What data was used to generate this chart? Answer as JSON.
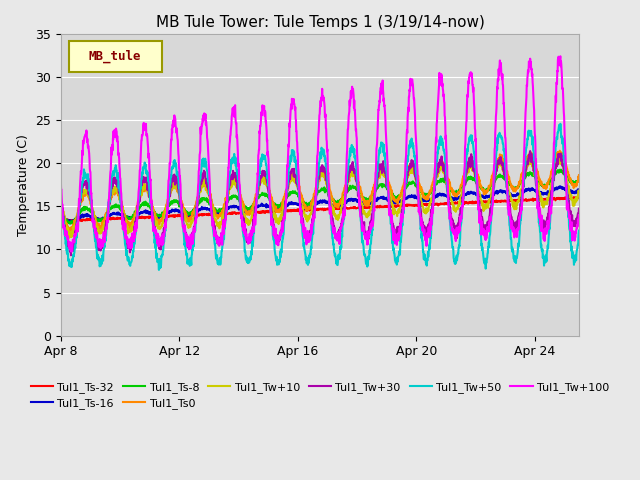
{
  "title": "MB Tule Tower: Tule Temps 1 (3/19/14-now)",
  "ylabel": "Temperature (C)",
  "xlabel": "",
  "ylim": [
    0,
    35
  ],
  "yticks": [
    0,
    5,
    10,
    15,
    20,
    25,
    30,
    35
  ],
  "background_color": "#e8e8e8",
  "axes_bg_color": "#d4d4d4",
  "plot_bg_color": "#d8d8d8",
  "legend_box_color": "#ffffcc",
  "legend_box_edge": "#999900",
  "legend_label_color": "#880000",
  "series": [
    {
      "name": "Tul1_Ts-32",
      "color": "#ff0000",
      "lw": 1.5
    },
    {
      "name": "Tul1_Ts-16",
      "color": "#0000cc",
      "lw": 1.5
    },
    {
      "name": "Tul1_Ts-8",
      "color": "#00cc00",
      "lw": 1.5
    },
    {
      "name": "Tul1_Ts0",
      "color": "#ff8800",
      "lw": 1.5
    },
    {
      "name": "Tul1_Tw+10",
      "color": "#cccc00",
      "lw": 1.5
    },
    {
      "name": "Tul1_Tw+30",
      "color": "#aa00aa",
      "lw": 1.5
    },
    {
      "name": "Tul1_Tw+50",
      "color": "#00cccc",
      "lw": 1.5
    },
    {
      "name": "Tul1_Tw+100",
      "color": "#ff00ff",
      "lw": 1.5
    }
  ],
  "xtick_positions": [
    0,
    4,
    8,
    12,
    16
  ],
  "xtick_labels": [
    "Apr 8",
    "Apr 12",
    "Apr 16",
    "Apr 20",
    "Apr 24"
  ]
}
